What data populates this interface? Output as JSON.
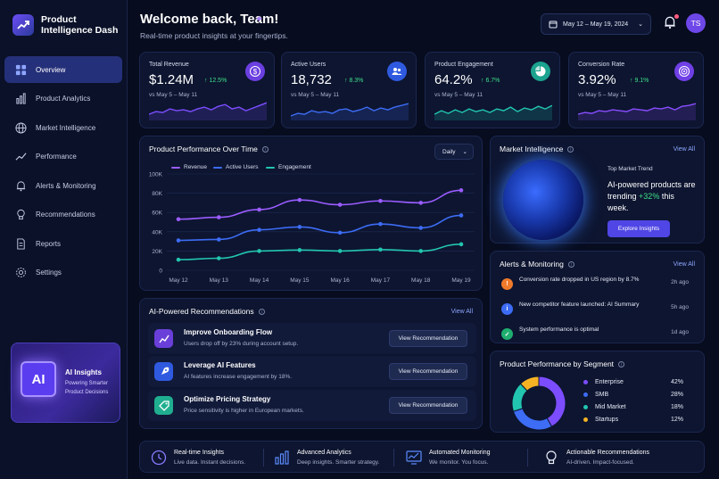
{
  "app": {
    "title_line1": "Product",
    "title_line2": "Intelligence Dash"
  },
  "nav": [
    {
      "label": "Overview",
      "icon": "grid-icon",
      "active": true
    },
    {
      "label": "Product Analytics",
      "icon": "bar-chart-icon"
    },
    {
      "label": "Market Intelligence",
      "icon": "globe-icon"
    },
    {
      "label": "Performance",
      "icon": "trend-icon"
    },
    {
      "label": "Alerts & Monitoring",
      "icon": "bell-icon"
    },
    {
      "label": "Recommendations",
      "icon": "lightbulb-icon"
    },
    {
      "label": "Reports",
      "icon": "document-icon"
    },
    {
      "label": "Settings",
      "icon": "gear-icon"
    }
  ],
  "ai_card": {
    "badge": "AI",
    "title": "AI Insights",
    "line1": "Powering Smarter",
    "line2": "Product Decisions"
  },
  "header": {
    "title": "Welcome back, Team!",
    "subtitle": "Real-time product insights at your fingertips.",
    "date_range": "May 12 – May 19, 2024",
    "avatar": "TS"
  },
  "kpis": [
    {
      "label": "Total Revenue",
      "value": "$1.24M",
      "delta": "↑ 12.5%",
      "vs": "vs May 5 – May 11",
      "icon": "dollar-icon",
      "color": "#7c4dff",
      "spark": [
        0.3,
        0.45,
        0.4,
        0.6,
        0.5,
        0.55,
        0.45,
        0.6,
        0.7,
        0.55,
        0.75,
        0.85,
        0.6,
        0.7,
        0.5,
        0.65,
        0.8,
        0.95
      ]
    },
    {
      "label": "Active Users",
      "value": "18,732",
      "delta": "↑ 8.3%",
      "vs": "vs May 5 – May 11",
      "icon": "users-icon",
      "color": "#3d6cf5",
      "spark": [
        0.2,
        0.35,
        0.3,
        0.5,
        0.4,
        0.45,
        0.35,
        0.55,
        0.6,
        0.45,
        0.55,
        0.7,
        0.5,
        0.65,
        0.55,
        0.7,
        0.8,
        0.9
      ]
    },
    {
      "label": "Product Engagement",
      "value": "64.2%",
      "delta": "↑ 6.7%",
      "vs": "vs May 5 – May 11",
      "icon": "pie-icon",
      "color": "#22c5b0",
      "spark": [
        0.3,
        0.5,
        0.35,
        0.55,
        0.4,
        0.6,
        0.45,
        0.55,
        0.4,
        0.6,
        0.5,
        0.7,
        0.45,
        0.65,
        0.55,
        0.75,
        0.6,
        0.8
      ]
    },
    {
      "label": "Conversion Rate",
      "value": "3.92%",
      "delta": "↑ 9.1%",
      "vs": "vs May 5 – May 11",
      "icon": "target-icon",
      "color": "#8a4dff",
      "spark": [
        0.3,
        0.4,
        0.35,
        0.5,
        0.45,
        0.55,
        0.5,
        0.45,
        0.6,
        0.55,
        0.5,
        0.65,
        0.6,
        0.7,
        0.55,
        0.75,
        0.8,
        0.9
      ]
    }
  ],
  "performance": {
    "title": "Product Performance Over Time",
    "granularity": "Daily"
  },
  "chart_data": {
    "type": "line",
    "categories": [
      "May 12",
      "May 13",
      "May 14",
      "May 15",
      "May 16",
      "May 17",
      "May 18",
      "May 19"
    ],
    "ylim": [
      0,
      100000
    ],
    "yticks": [
      "0",
      "20K",
      "40K",
      "60K",
      "80K",
      "100K"
    ],
    "series": [
      {
        "name": "Revenue",
        "color": "#9b5cff",
        "values": [
          53000,
          55000,
          63000,
          73000,
          68000,
          72000,
          70000,
          83000
        ]
      },
      {
        "name": "Active Users",
        "color": "#3d6cf5",
        "values": [
          31000,
          32000,
          42000,
          45000,
          39000,
          48000,
          44000,
          57000
        ]
      },
      {
        "name": "Engagement",
        "color": "#22c5b0",
        "values": [
          11000,
          12500,
          20000,
          21000,
          20000,
          21500,
          20000,
          27000
        ]
      }
    ]
  },
  "recommendations": {
    "title": "AI-Powered Recommendations",
    "view_all": "View All",
    "items": [
      {
        "title": "Improve Onboarding Flow",
        "desc": "Users drop off by 23% during account setup.",
        "button": "View Recommendation",
        "icon": "trend-up-icon",
        "color": "#6a3fd9"
      },
      {
        "title": "Leverage AI Features",
        "desc": "AI features increase engagement by 18%.",
        "button": "View Recommendation",
        "icon": "rocket-icon",
        "color": "#2f5ae0"
      },
      {
        "title": "Optimize Pricing Strategy",
        "desc": "Price sensitivity is higher in European markets.",
        "button": "View Recommendation",
        "icon": "tag-icon",
        "color": "#1fae8f"
      }
    ]
  },
  "market": {
    "title": "Market Intelligence",
    "view_all": "View All",
    "trend_label": "Top Market Trend",
    "trend_text": "AI-powered products are trending",
    "trend_delta": "+32%",
    "trend_tail": "this week.",
    "button": "Explore Insights"
  },
  "alerts": {
    "title": "Alerts & Monitoring",
    "view_all": "View All",
    "items": [
      {
        "text": "Conversion rate dropped in US region by 8.7%",
        "time": "2h ago",
        "icon": "warning-icon",
        "glyph": "!",
        "color": "#f07a2a"
      },
      {
        "text": "New competitor feature launched: AI Summary",
        "time": "5h ago",
        "icon": "info-icon",
        "glyph": "i",
        "color": "#3d6cf5"
      },
      {
        "text": "System performance is optimal",
        "time": "1d ago",
        "icon": "check-icon",
        "glyph": "✓",
        "color": "#1fae6f"
      }
    ]
  },
  "segments": {
    "title": "Product Performance by Segment",
    "items": [
      {
        "name": "Enterprise",
        "pct": "42%",
        "value": 42,
        "color": "#7c4dff"
      },
      {
        "name": "SMB",
        "pct": "28%",
        "value": 28,
        "color": "#3d6cf5"
      },
      {
        "name": "Mid Market",
        "pct": "18%",
        "value": 18,
        "color": "#22c5b0"
      },
      {
        "name": "Startups",
        "pct": "12%",
        "value": 12,
        "color": "#f5b324"
      }
    ]
  },
  "features": [
    {
      "title": "Real-time Insights",
      "sub": "Live data. Instant decisions.",
      "icon": "clock-icon"
    },
    {
      "title": "Advanced Analytics",
      "sub": "Deep insights. Smarter strategy.",
      "icon": "bar-chart-icon"
    },
    {
      "title": "Automated Monitoring",
      "sub": "We monitor. You focus.",
      "icon": "monitor-icon"
    },
    {
      "title": "Actionable Recommendations",
      "sub": "AI-driven. Impact-focused.",
      "icon": "lightbulb-icon"
    }
  ]
}
